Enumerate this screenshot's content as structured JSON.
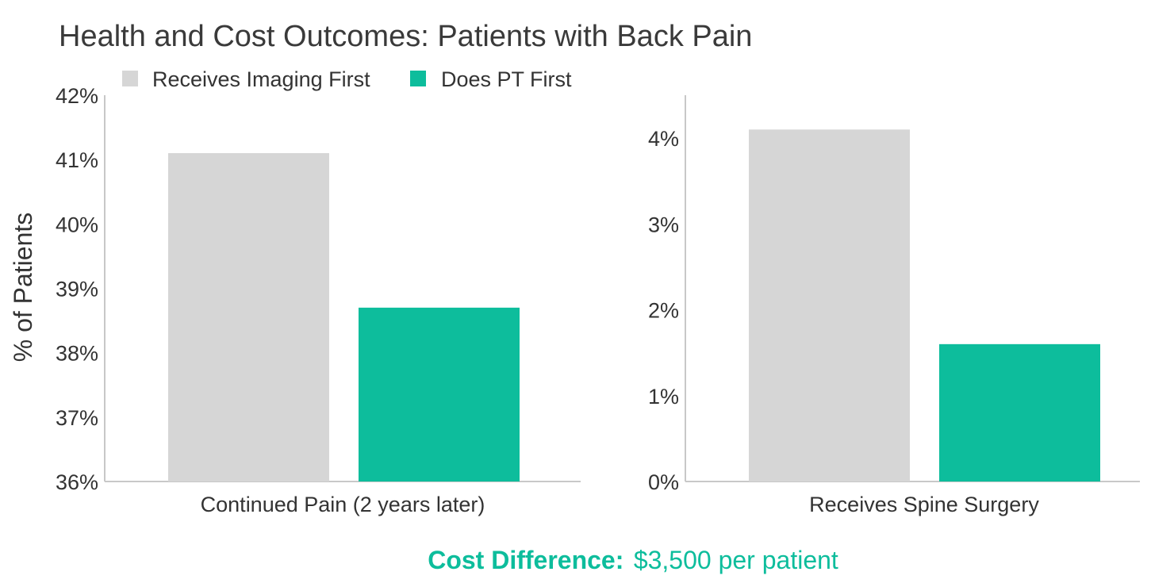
{
  "chart_data": {
    "type": "bar",
    "title": "Health and Cost Outcomes: Patients with Back Pain",
    "ylabel": "% of Patients",
    "legend": [
      {
        "name": "Receives Imaging First",
        "color": "#d6d6d6"
      },
      {
        "name": "Does PT First",
        "color": "#0dbd9c"
      }
    ],
    "legend_position": "top-left",
    "grid": false,
    "panels": [
      {
        "category": "Continued Pain (2 years later)",
        "ylim": [
          36,
          42
        ],
        "yticks": [
          36,
          37,
          38,
          39,
          40,
          41,
          42
        ],
        "tick_labels": [
          "36%",
          "37%",
          "38%",
          "39%",
          "40%",
          "41%",
          "42%"
        ],
        "series": [
          {
            "name": "Receives Imaging First",
            "values": [
              41.1
            ]
          },
          {
            "name": "Does PT First",
            "values": [
              38.7
            ]
          }
        ]
      },
      {
        "category": "Receives Spine Surgery",
        "ylim": [
          0,
          4.5
        ],
        "yticks": [
          0,
          1,
          2,
          3,
          4
        ],
        "tick_labels": [
          "0%",
          "1%",
          "2%",
          "3%",
          "4%"
        ],
        "series": [
          {
            "name": "Receives Imaging First",
            "values": [
              4.1
            ]
          },
          {
            "name": "Does PT First",
            "values": [
              1.6
            ]
          }
        ]
      }
    ],
    "footer": {
      "label": "Cost Difference:",
      "value": "$3,500 per patient",
      "color": "#0dbd9c"
    }
  }
}
